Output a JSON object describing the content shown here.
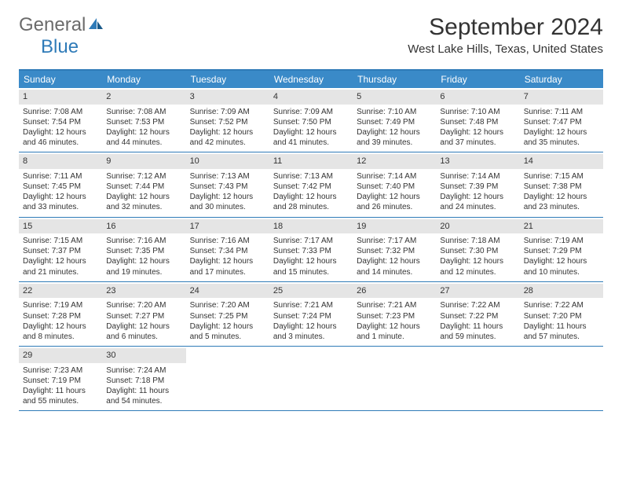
{
  "logo": {
    "general": "General",
    "blue": "Blue"
  },
  "title": "September 2024",
  "location": "West Lake Hills, Texas, United States",
  "day_headers": [
    "Sunday",
    "Monday",
    "Tuesday",
    "Wednesday",
    "Thursday",
    "Friday",
    "Saturday"
  ],
  "colors": {
    "header_bg": "#3a8ac8",
    "border": "#2f7bb8",
    "daynum_bg": "#e5e5e5",
    "text": "#333333",
    "logo_gray": "#6b6b6b",
    "logo_blue": "#2f7bb8"
  },
  "weeks": [
    [
      {
        "n": "1",
        "sr": "7:08 AM",
        "ss": "7:54 PM",
        "dl": "12 hours and 46 minutes."
      },
      {
        "n": "2",
        "sr": "7:08 AM",
        "ss": "7:53 PM",
        "dl": "12 hours and 44 minutes."
      },
      {
        "n": "3",
        "sr": "7:09 AM",
        "ss": "7:52 PM",
        "dl": "12 hours and 42 minutes."
      },
      {
        "n": "4",
        "sr": "7:09 AM",
        "ss": "7:50 PM",
        "dl": "12 hours and 41 minutes."
      },
      {
        "n": "5",
        "sr": "7:10 AM",
        "ss": "7:49 PM",
        "dl": "12 hours and 39 minutes."
      },
      {
        "n": "6",
        "sr": "7:10 AM",
        "ss": "7:48 PM",
        "dl": "12 hours and 37 minutes."
      },
      {
        "n": "7",
        "sr": "7:11 AM",
        "ss": "7:47 PM",
        "dl": "12 hours and 35 minutes."
      }
    ],
    [
      {
        "n": "8",
        "sr": "7:11 AM",
        "ss": "7:45 PM",
        "dl": "12 hours and 33 minutes."
      },
      {
        "n": "9",
        "sr": "7:12 AM",
        "ss": "7:44 PM",
        "dl": "12 hours and 32 minutes."
      },
      {
        "n": "10",
        "sr": "7:13 AM",
        "ss": "7:43 PM",
        "dl": "12 hours and 30 minutes."
      },
      {
        "n": "11",
        "sr": "7:13 AM",
        "ss": "7:42 PM",
        "dl": "12 hours and 28 minutes."
      },
      {
        "n": "12",
        "sr": "7:14 AM",
        "ss": "7:40 PM",
        "dl": "12 hours and 26 minutes."
      },
      {
        "n": "13",
        "sr": "7:14 AM",
        "ss": "7:39 PM",
        "dl": "12 hours and 24 minutes."
      },
      {
        "n": "14",
        "sr": "7:15 AM",
        "ss": "7:38 PM",
        "dl": "12 hours and 23 minutes."
      }
    ],
    [
      {
        "n": "15",
        "sr": "7:15 AM",
        "ss": "7:37 PM",
        "dl": "12 hours and 21 minutes."
      },
      {
        "n": "16",
        "sr": "7:16 AM",
        "ss": "7:35 PM",
        "dl": "12 hours and 19 minutes."
      },
      {
        "n": "17",
        "sr": "7:16 AM",
        "ss": "7:34 PM",
        "dl": "12 hours and 17 minutes."
      },
      {
        "n": "18",
        "sr": "7:17 AM",
        "ss": "7:33 PM",
        "dl": "12 hours and 15 minutes."
      },
      {
        "n": "19",
        "sr": "7:17 AM",
        "ss": "7:32 PM",
        "dl": "12 hours and 14 minutes."
      },
      {
        "n": "20",
        "sr": "7:18 AM",
        "ss": "7:30 PM",
        "dl": "12 hours and 12 minutes."
      },
      {
        "n": "21",
        "sr": "7:19 AM",
        "ss": "7:29 PM",
        "dl": "12 hours and 10 minutes."
      }
    ],
    [
      {
        "n": "22",
        "sr": "7:19 AM",
        "ss": "7:28 PM",
        "dl": "12 hours and 8 minutes."
      },
      {
        "n": "23",
        "sr": "7:20 AM",
        "ss": "7:27 PM",
        "dl": "12 hours and 6 minutes."
      },
      {
        "n": "24",
        "sr": "7:20 AM",
        "ss": "7:25 PM",
        "dl": "12 hours and 5 minutes."
      },
      {
        "n": "25",
        "sr": "7:21 AM",
        "ss": "7:24 PM",
        "dl": "12 hours and 3 minutes."
      },
      {
        "n": "26",
        "sr": "7:21 AM",
        "ss": "7:23 PM",
        "dl": "12 hours and 1 minute."
      },
      {
        "n": "27",
        "sr": "7:22 AM",
        "ss": "7:22 PM",
        "dl": "11 hours and 59 minutes."
      },
      {
        "n": "28",
        "sr": "7:22 AM",
        "ss": "7:20 PM",
        "dl": "11 hours and 57 minutes."
      }
    ],
    [
      {
        "n": "29",
        "sr": "7:23 AM",
        "ss": "7:19 PM",
        "dl": "11 hours and 55 minutes."
      },
      {
        "n": "30",
        "sr": "7:24 AM",
        "ss": "7:18 PM",
        "dl": "11 hours and 54 minutes."
      },
      null,
      null,
      null,
      null,
      null
    ]
  ],
  "labels": {
    "sunrise": "Sunrise:",
    "sunset": "Sunset:",
    "daylight": "Daylight:"
  }
}
